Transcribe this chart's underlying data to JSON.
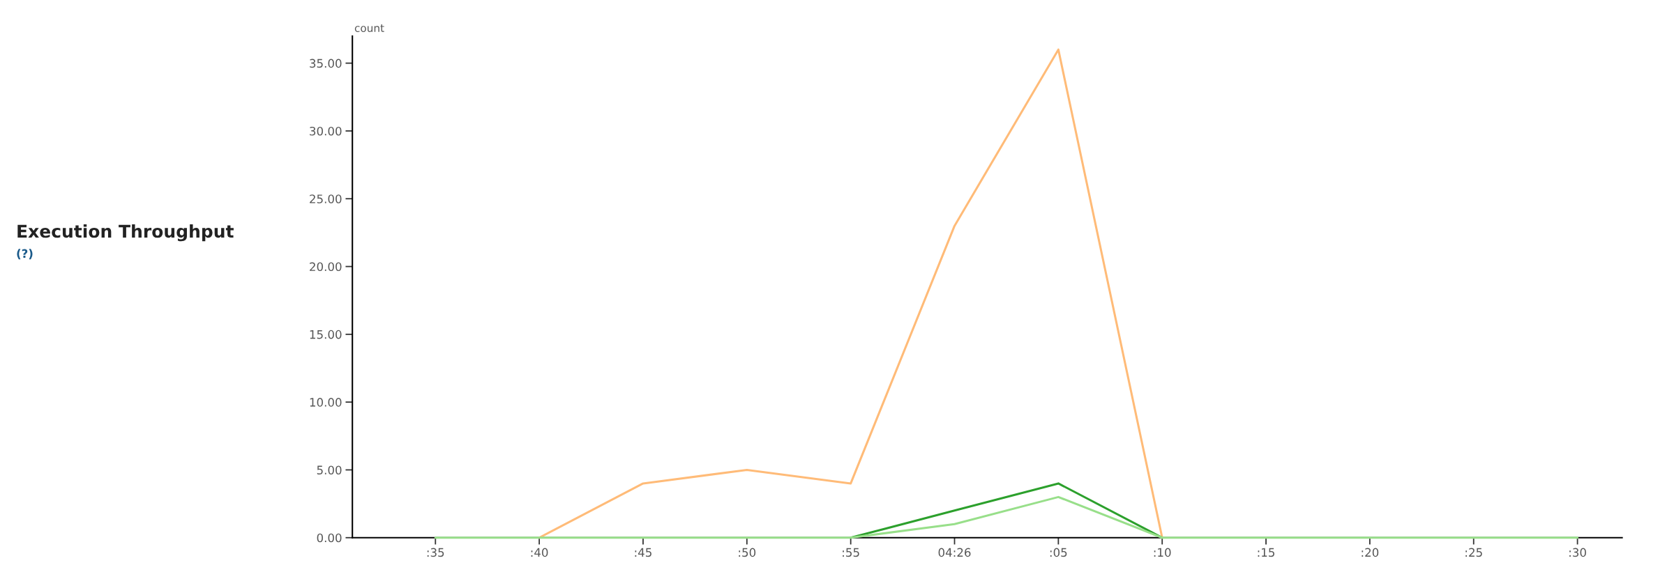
{
  "chart_data": {
    "type": "line",
    "title": "Execution Throughput",
    "ylabel": "count",
    "annotations": [
      "(?)"
    ],
    "categories": [
      ":35",
      ":40",
      ":45",
      ":50",
      ":55",
      "04:26",
      ":05",
      ":10",
      ":15",
      ":20",
      ":25",
      ":30"
    ],
    "series": [
      {
        "color": "#ffbb78",
        "values": [
          null,
          0,
          4,
          5,
          4,
          23,
          36,
          0,
          null,
          null,
          null,
          null
        ]
      },
      {
        "color": "#2ca02c",
        "values": [
          null,
          null,
          null,
          null,
          0,
          2,
          4,
          0,
          null,
          null,
          null,
          null
        ]
      },
      {
        "color": "#98df8a",
        "values": [
          0,
          0,
          0,
          0,
          0,
          1,
          3,
          0,
          0,
          0,
          0,
          0
        ]
      }
    ],
    "ylim": [
      0,
      37
    ],
    "yticks": [
      {
        "value": 0,
        "label": "0.00"
      },
      {
        "value": 5,
        "label": "5.00"
      },
      {
        "value": 10,
        "label": "10.00"
      },
      {
        "value": 15,
        "label": "15.00"
      },
      {
        "value": 20,
        "label": "20.00"
      },
      {
        "value": 25,
        "label": "25.00"
      },
      {
        "value": 30,
        "label": "30.00"
      },
      {
        "value": 35,
        "label": "35.00"
      }
    ],
    "grid": false,
    "legend": false,
    "marker": "none",
    "line_style": "solid"
  }
}
